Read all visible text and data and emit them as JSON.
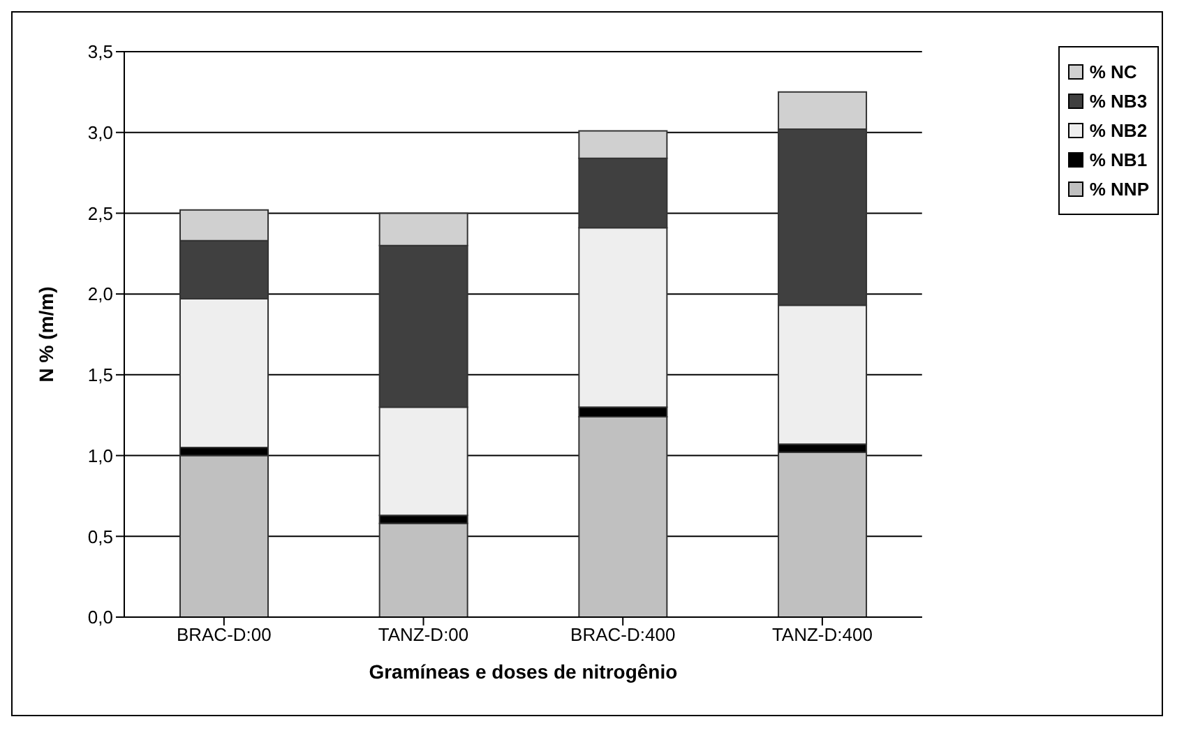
{
  "chart_data": {
    "type": "bar",
    "stacked": true,
    "xlabel": "Gramíneas e doses de nitrogênio",
    "ylabel": "N % (m/m)",
    "categories": [
      "BRAC-D:00",
      "TANZ-D:00",
      "BRAC-D:400",
      "TANZ-D:400"
    ],
    "series": [
      {
        "name": "% NNP",
        "color": "#c0c0c0",
        "values": [
          1.0,
          0.58,
          1.24,
          1.02
        ]
      },
      {
        "name": "% NB1",
        "color": "#000000",
        "values": [
          0.05,
          0.05,
          0.06,
          0.05
        ]
      },
      {
        "name": "% NB2",
        "color": "#eeeeee",
        "values": [
          0.92,
          0.67,
          1.11,
          0.86
        ]
      },
      {
        "name": "% NB3",
        "color": "#404040",
        "values": [
          0.36,
          1.0,
          0.43,
          1.09
        ]
      },
      {
        "name": "% NC",
        "color": "#d0d0d0",
        "values": [
          0.19,
          0.2,
          0.17,
          0.23
        ]
      }
    ],
    "ylim": [
      0,
      3.5
    ],
    "yticks": [
      {
        "value": 0,
        "label": "0,0"
      },
      {
        "value": 0.5,
        "label": "0,5"
      },
      {
        "value": 1,
        "label": "1,0"
      },
      {
        "value": 1.5,
        "label": "1,5"
      },
      {
        "value": 2,
        "label": "2,0"
      },
      {
        "value": 2.5,
        "label": "2,5"
      },
      {
        "value": 3,
        "label": "3,0"
      },
      {
        "value": 3.5,
        "label": "3,5"
      }
    ],
    "grid": "y",
    "legend": "top right"
  }
}
